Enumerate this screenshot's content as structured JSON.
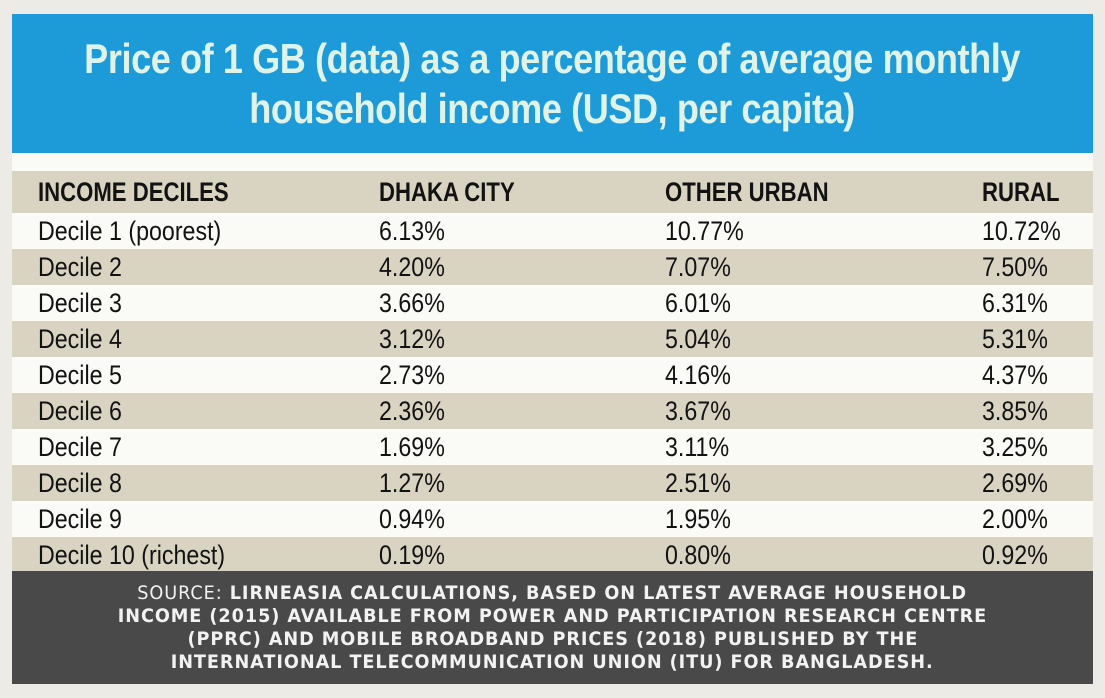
{
  "title": {
    "line1": "Price of 1 GB (data) as a percentage of average monthly",
    "line2": "household income (USD, per capita)"
  },
  "table": {
    "columns": [
      "INCOME DECILES",
      "DHAKA CITY",
      "OTHER URBAN",
      "RURAL"
    ],
    "rows": [
      [
        "Decile 1 (poorest)",
        "6.13%",
        "10.77%",
        "10.72%"
      ],
      [
        "Decile 2",
        "4.20%",
        "7.07%",
        "7.50%"
      ],
      [
        "Decile 3",
        "3.66%",
        "6.01%",
        "6.31%"
      ],
      [
        "Decile 4",
        "3.12%",
        "5.04%",
        "5.31%"
      ],
      [
        "Decile 5",
        "2.73%",
        "4.16%",
        "4.37%"
      ],
      [
        "Decile 6",
        "2.36%",
        "3.67%",
        "3.85%"
      ],
      [
        "Decile 7",
        "1.69%",
        "3.11%",
        "3.25%"
      ],
      [
        "Decile 8",
        "1.27%",
        "2.51%",
        "2.69%"
      ],
      [
        "Decile 9",
        "0.94%",
        "1.95%",
        "2.00%"
      ],
      [
        "Decile 10 (richest)",
        "0.19%",
        "0.80%",
        "0.92%"
      ]
    ]
  },
  "source": {
    "label": "SOURCE:",
    "line1": "LIRNEASIA CALCULATIONS, BASED ON LATEST AVERAGE HOUSEHOLD",
    "line2": "INCOME (2015) AVAILABLE FROM POWER AND PARTICIPATION RESEARCH CENTRE",
    "line3": "(PPRC) AND MOBILE BROADBAND PRICES (2018) PUBLISHED BY THE",
    "line4": "INTERNATIONAL TELECOMMUNICATION UNION (ITU) FOR BANGLADESH."
  },
  "colors": {
    "title_bg": "#1d9ad8",
    "title_text": "#dff3e8",
    "row_shade": "#d9d4c2",
    "source_bg": "#494949"
  }
}
